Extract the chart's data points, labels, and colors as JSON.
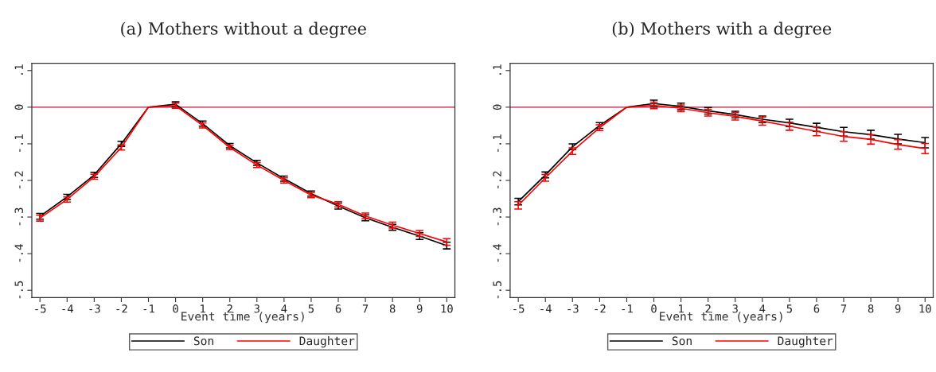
{
  "chart_data": [
    {
      "type": "line",
      "title": "(a) Mothers without a degree",
      "xlabel": "Event time (years)",
      "x": [
        -5,
        -4,
        -3,
        -2,
        -1,
        0,
        1,
        2,
        3,
        4,
        5,
        6,
        7,
        8,
        9,
        10
      ],
      "series": [
        {
          "name": "Son",
          "color": "#000000",
          "values": [
            -0.298,
            -0.245,
            -0.185,
            -0.1,
            0,
            0.008,
            -0.045,
            -0.105,
            -0.152,
            -0.195,
            -0.236,
            -0.27,
            -0.302,
            -0.328,
            -0.352,
            -0.378
          ],
          "errors": [
            0.008,
            0.007,
            0.007,
            0.007,
            null,
            0.007,
            0.007,
            0.006,
            0.007,
            0.007,
            0.007,
            0.008,
            0.008,
            0.008,
            0.009,
            0.009
          ]
        },
        {
          "name": "Daughter",
          "color": "#ff0000",
          "values": [
            -0.303,
            -0.252,
            -0.19,
            -0.11,
            0,
            0.004,
            -0.05,
            -0.11,
            -0.158,
            -0.2,
            -0.24,
            -0.265,
            -0.297,
            -0.322,
            -0.345,
            -0.368
          ],
          "errors": [
            0.008,
            0.007,
            0.007,
            0.007,
            null,
            0.007,
            0.007,
            0.006,
            0.007,
            0.007,
            0.007,
            0.007,
            0.008,
            0.008,
            0.008,
            0.009
          ]
        }
      ],
      "xlim": [
        -5.3,
        10.3
      ],
      "ylim": [
        -0.52,
        0.12
      ],
      "xticks": [
        -5,
        -4,
        -3,
        -2,
        -1,
        0,
        1,
        2,
        3,
        4,
        5,
        6,
        7,
        8,
        9,
        10
      ],
      "yticks": [
        {
          "value": 0.1,
          "label": ".1"
        },
        0,
        {
          "value": -0.1,
          "label": "-.1"
        },
        {
          "value": -0.2,
          "label": "-.2"
        },
        {
          "value": -0.3,
          "label": "-.3"
        },
        {
          "value": -0.4,
          "label": "-.4"
        },
        {
          "value": -0.5,
          "label": "-.5"
        }
      ],
      "ref_lines": [
        {
          "axis": "y",
          "value": 0,
          "color": "#c8103c"
        }
      ],
      "grid": false,
      "legend": "bottom",
      "marker": "none",
      "line_style": "solid"
    },
    {
      "type": "line",
      "title": "(b) Mothers with a degree",
      "xlabel": "Event time (years)",
      "x": [
        -5,
        -4,
        -3,
        -2,
        -1,
        0,
        1,
        2,
        3,
        4,
        5,
        6,
        7,
        8,
        9,
        10
      ],
      "series": [
        {
          "name": "Son",
          "color": "#000000",
          "values": [
            -0.258,
            -0.185,
            -0.108,
            -0.05,
            0,
            0.01,
            0.002,
            -0.01,
            -0.02,
            -0.033,
            -0.043,
            -0.055,
            -0.067,
            -0.075,
            -0.087,
            -0.097
          ],
          "errors": [
            0.009,
            0.008,
            0.008,
            0.008,
            null,
            0.009,
            0.009,
            0.009,
            0.009,
            0.009,
            0.01,
            0.011,
            0.012,
            0.012,
            0.013,
            0.014
          ]
        },
        {
          "name": "Daughter",
          "color": "#ff0000",
          "values": [
            -0.268,
            -0.193,
            -0.12,
            -0.056,
            0,
            0.005,
            -0.003,
            -0.015,
            -0.025,
            -0.038,
            -0.052,
            -0.066,
            -0.08,
            -0.088,
            -0.102,
            -0.113
          ],
          "errors": [
            0.01,
            0.009,
            0.009,
            0.008,
            null,
            0.009,
            0.009,
            0.009,
            0.01,
            0.011,
            0.011,
            0.012,
            0.013,
            0.013,
            0.013,
            0.014
          ]
        }
      ],
      "xlim": [
        -5.3,
        10.3
      ],
      "ylim": [
        -0.52,
        0.12
      ],
      "xticks": [
        -5,
        -4,
        -3,
        -2,
        -1,
        0,
        1,
        2,
        3,
        4,
        5,
        6,
        7,
        8,
        9,
        10
      ],
      "yticks": [
        {
          "value": 0.1,
          "label": ".1"
        },
        0,
        {
          "value": -0.1,
          "label": "-.1"
        },
        {
          "value": -0.2,
          "label": "-.2"
        },
        {
          "value": -0.3,
          "label": "-.3"
        },
        {
          "value": -0.4,
          "label": "-.4"
        },
        {
          "value": -0.5,
          "label": "-.5"
        }
      ],
      "ref_lines": [
        {
          "axis": "y",
          "value": 0,
          "color": "#c8103c"
        }
      ],
      "grid": false,
      "legend": "bottom",
      "marker": "none",
      "line_style": "solid"
    }
  ]
}
